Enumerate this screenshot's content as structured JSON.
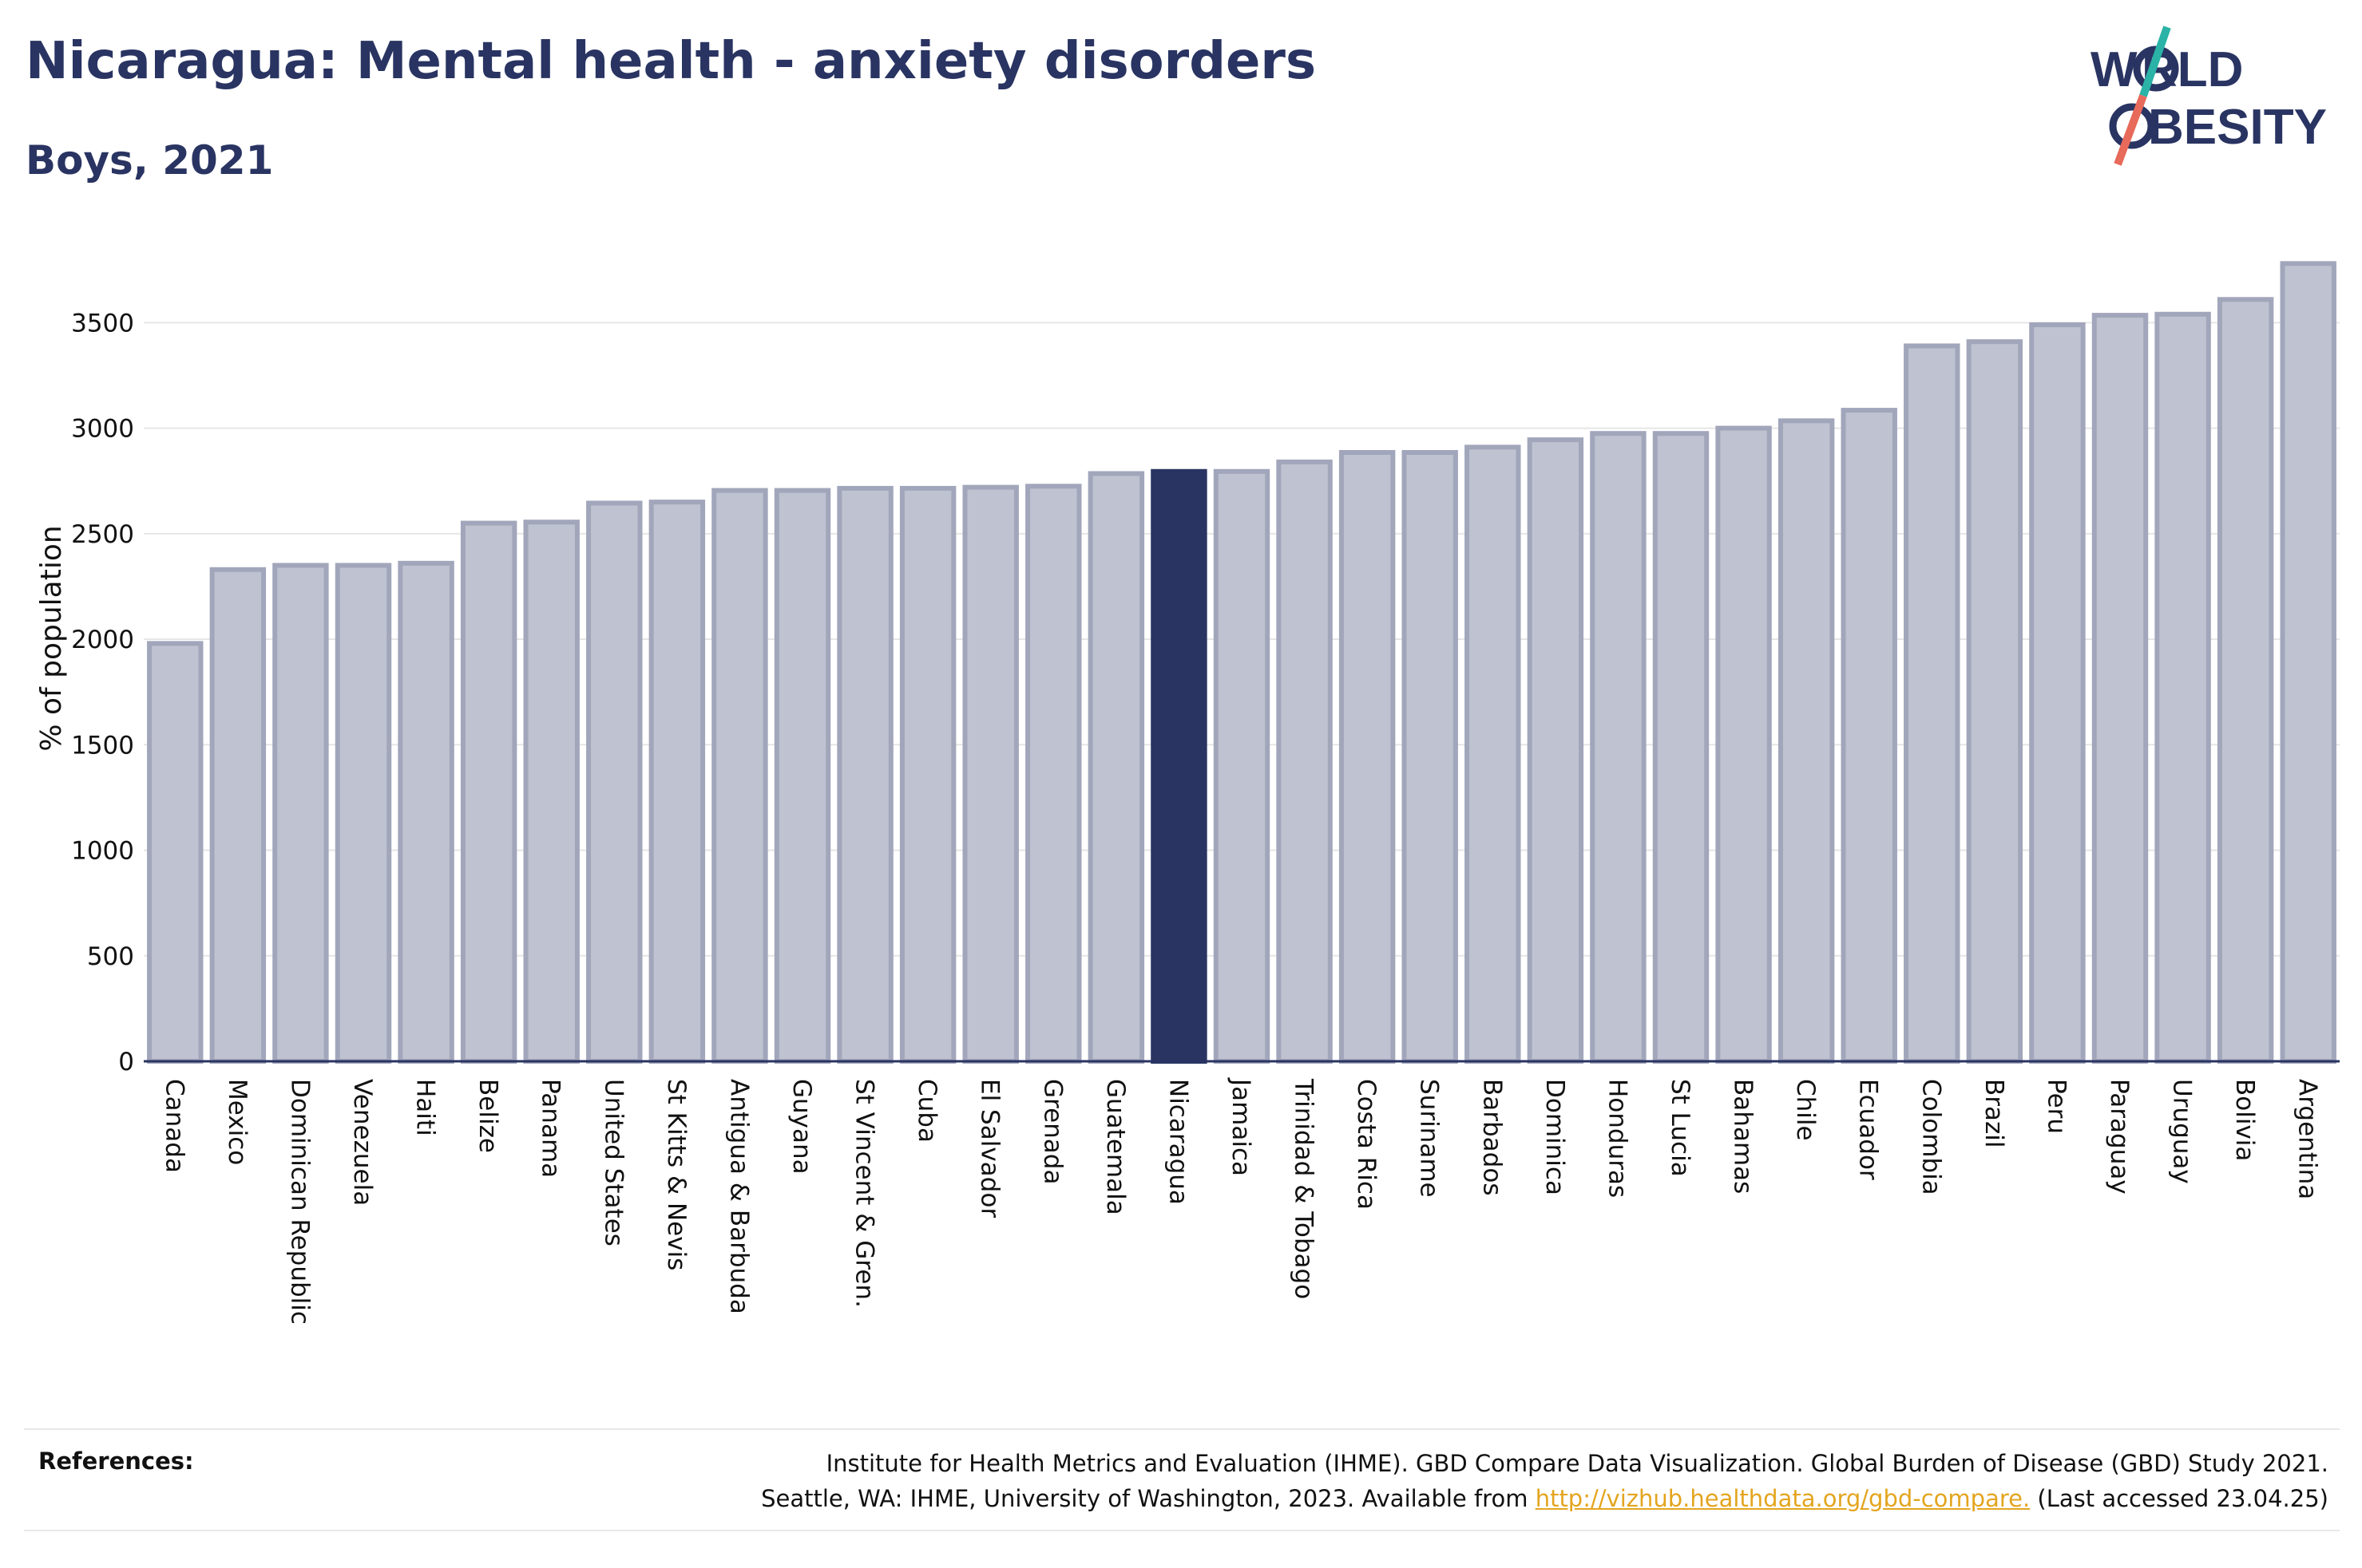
{
  "header": {
    "title": "Nicaragua: Mental health - anxiety disorders",
    "subtitle": "Boys, 2021"
  },
  "logo": {
    "line1": "W",
    "line1b": "RLD",
    "line2": "BESITY",
    "icon": "world-obesity-logo"
  },
  "colors": {
    "bar": "#bfc2d0",
    "bar_stroke": "#a2a6bb",
    "highlight": "#293462",
    "accent_teal": "#2ab3a6",
    "accent_coral": "#e76a5a",
    "link": "#e3a51f"
  },
  "chart_data": {
    "type": "bar",
    "title": "Nicaragua: Mental health - anxiety disorders",
    "subtitle": "Boys, 2021",
    "xlabel": "",
    "ylabel": "% of population",
    "ylim": [
      0,
      3800
    ],
    "yticks": [
      0,
      500,
      1000,
      1500,
      2000,
      2500,
      3000,
      3500
    ],
    "grid": true,
    "highlight": "Nicaragua",
    "categories": [
      "Canada",
      "Mexico",
      "Dominican Republic",
      "Venezuela",
      "Haiti",
      "Belize",
      "Panama",
      "United States",
      "St Kitts & Nevis",
      "Antigua & Barbuda",
      "Guyana",
      "St Vincent & Gren.",
      "Cuba",
      "El Salvador",
      "Grenada",
      "Guatemala",
      "Nicaragua",
      "Jamaica",
      "Trinidad & Tobago",
      "Costa Rica",
      "Suriname",
      "Barbados",
      "Dominica",
      "Honduras",
      "St Lucia",
      "Bahamas",
      "Chile",
      "Ecuador",
      "Colombia",
      "Brazil",
      "Peru",
      "Paraguay",
      "Uruguay",
      "Bolivia",
      "Argentina"
    ],
    "values": [
      1980,
      2330,
      2350,
      2350,
      2360,
      2550,
      2555,
      2645,
      2650,
      2705,
      2705,
      2715,
      2715,
      2720,
      2725,
      2785,
      2795,
      2795,
      2840,
      2885,
      2885,
      2910,
      2945,
      2975,
      2975,
      3000,
      3035,
      3085,
      3390,
      3410,
      3490,
      3535,
      3540,
      3610,
      3780
    ]
  },
  "references": {
    "label": "References:",
    "line1": "Institute for Health Metrics and Evaluation (IHME). GBD Compare Data Visualization. Global Burden of Disease (GBD) Study 2021.",
    "line2_prefix": "Seattle, WA: IHME, University of Washington, 2023. Available from ",
    "link": "http://vizhub.healthdata.org/gbd-compare.",
    "line2_suffix": " (Last accessed 23.04.25)"
  }
}
